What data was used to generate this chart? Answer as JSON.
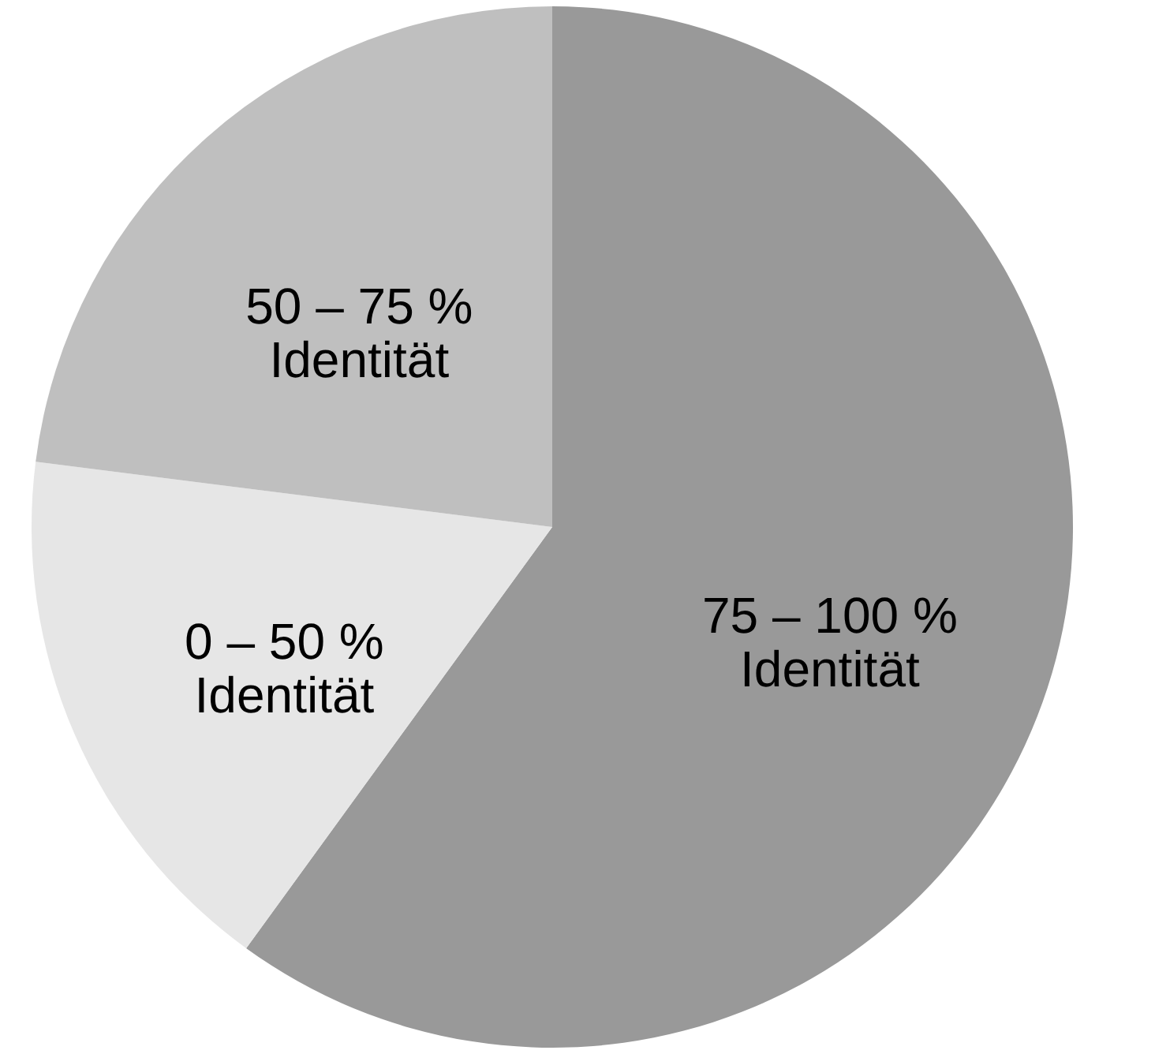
{
  "chart_data": {
    "type": "pie",
    "categories": [
      "75 – 100 %\nIdentität",
      "0 – 50 %\nIdentität",
      "50 – 75 %\nIdentität"
    ],
    "values": [
      60,
      17,
      23
    ],
    "colors": [
      "#999999",
      "#e6e6e6",
      "#bfbfbf"
    ]
  }
}
